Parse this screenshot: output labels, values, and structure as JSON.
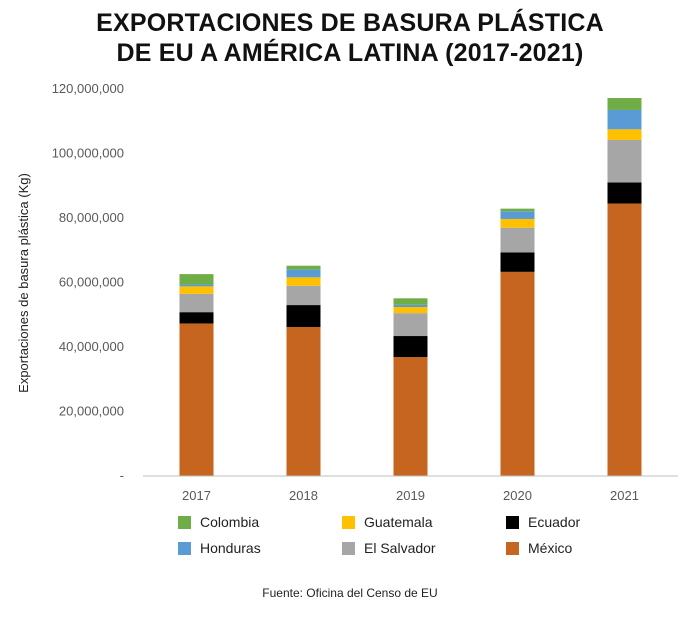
{
  "title": {
    "line1": "EXPORTACIONES DE BASURA PLÁSTICA",
    "line2": "DE EU A AMÉRICA LATINA (2017-2021)"
  },
  "source": "Fuente: Oficina del Censo de EU",
  "chart_data": {
    "type": "bar",
    "stacked": true,
    "categories": [
      "2017",
      "2018",
      "2019",
      "2020",
      "2021"
    ],
    "ylabel": "Exportaciones de basura plástica (Kg)",
    "xlabel": "",
    "ylim": [
      0,
      120000000
    ],
    "yticks": [
      0,
      20000000,
      40000000,
      60000000,
      80000000,
      100000000,
      120000000
    ],
    "ytick_labels": [
      "-",
      "20,000,000",
      "40,000,000",
      "60,000,000",
      "80,000,000",
      "100,000,000",
      "120,000,000"
    ],
    "grid": false,
    "legend_position": "bottom",
    "series": [
      {
        "name": "México",
        "color": "#C5651F",
        "values": [
          47300000,
          46200000,
          36900000,
          63300000,
          84500000
        ]
      },
      {
        "name": "Ecuador",
        "color": "#000000",
        "values": [
          3500000,
          6800000,
          6500000,
          6000000,
          6500000
        ]
      },
      {
        "name": "El Salvador",
        "color": "#A6A6A6",
        "values": [
          5700000,
          6000000,
          7100000,
          7700000,
          13200000
        ]
      },
      {
        "name": "Guatemala",
        "color": "#FFC000",
        "values": [
          2300000,
          2600000,
          1900000,
          2700000,
          3300000
        ]
      },
      {
        "name": "Honduras",
        "color": "#5B9BD5",
        "values": [
          600000,
          2400000,
          700000,
          2400000,
          6000000
        ]
      },
      {
        "name": "Colombia",
        "color": "#70AD47",
        "values": [
          3200000,
          1200000,
          2000000,
          800000,
          3700000
        ]
      }
    ],
    "legend_order": [
      "Colombia",
      "Guatemala",
      "Ecuador",
      "Honduras",
      "El Salvador",
      "México"
    ]
  }
}
